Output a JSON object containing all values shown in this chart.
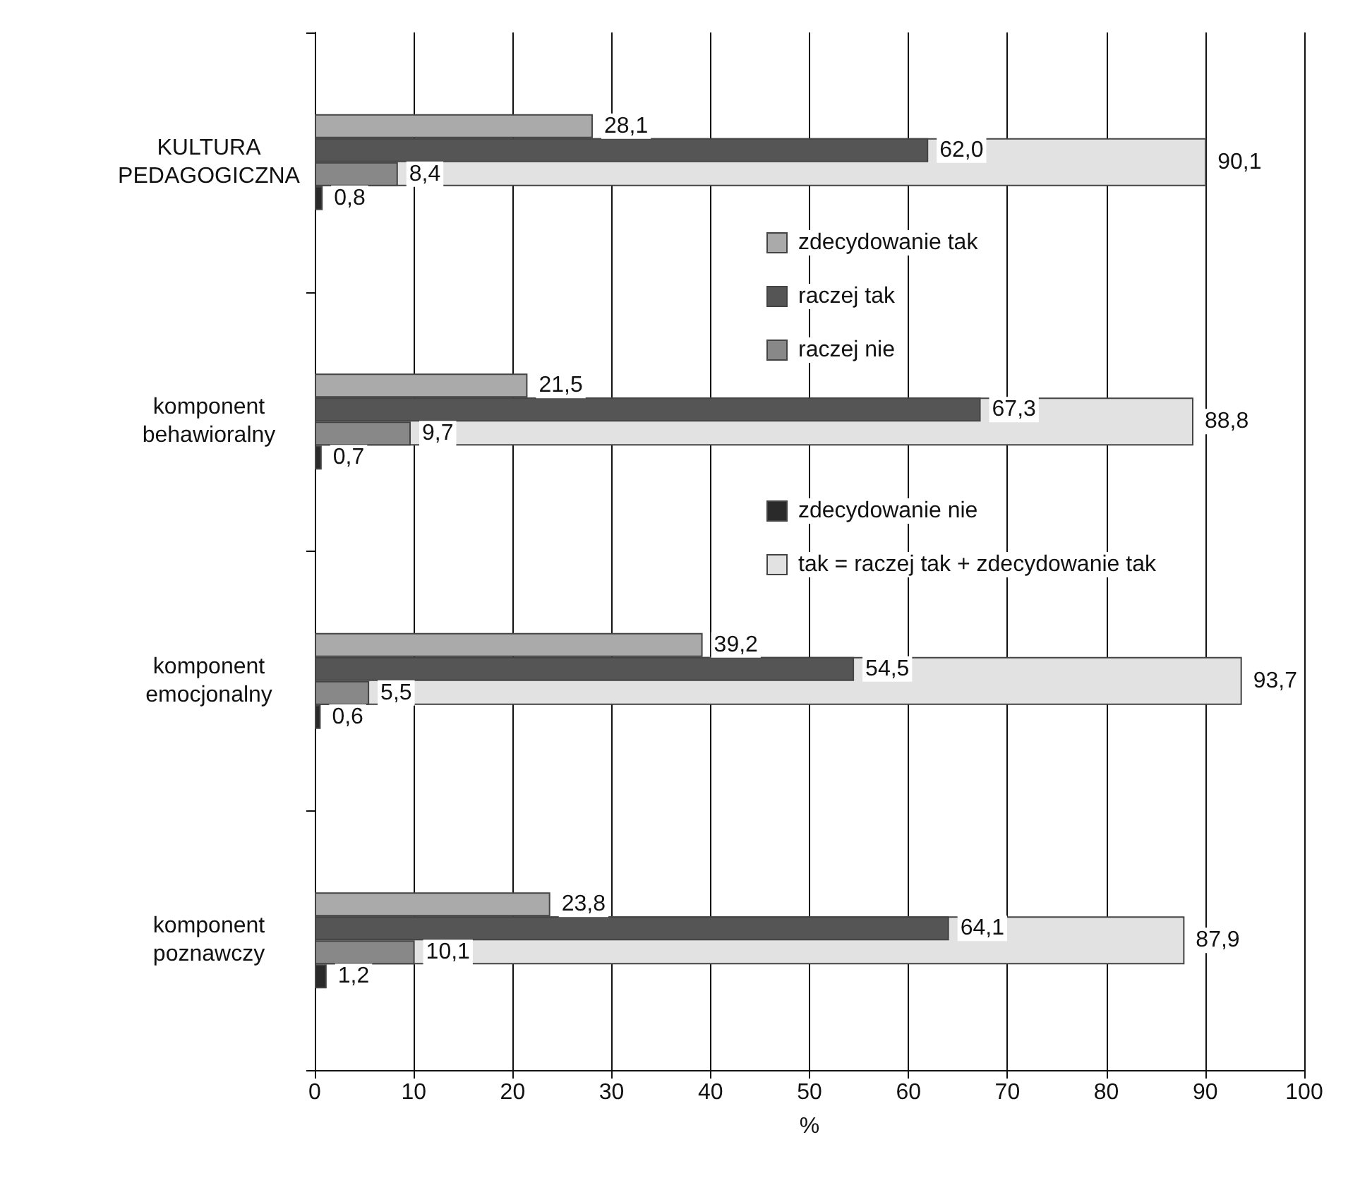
{
  "chart_data": {
    "type": "bar",
    "orientation": "horizontal",
    "xlabel": "%",
    "categories": [
      "KULTURA\nPEDAGOGICZNA",
      "komponent\nbehawioralny",
      "komponent\nemocjonalny",
      "komponent\npoznawczy"
    ],
    "series": [
      {
        "name": "zdecydowanie tak",
        "color": "#aaaaaa",
        "values": [
          28.1,
          21.5,
          39.2,
          23.8
        ],
        "value_labels": [
          "28,1",
          "21,5",
          "39,2",
          "23,8"
        ]
      },
      {
        "name": "raczej tak",
        "color": "#555555",
        "values": [
          62.0,
          67.3,
          54.5,
          64.1
        ],
        "value_labels": [
          "62,0",
          "67,3",
          "54,5",
          "64,1"
        ]
      },
      {
        "name": "raczej nie",
        "color": "#888888",
        "values": [
          8.4,
          9.7,
          5.5,
          10.1
        ],
        "value_labels": [
          "8,4",
          "9,7",
          "5,5",
          "10,1"
        ]
      },
      {
        "name": "zdecydowanie nie",
        "color": "#2a2a2a",
        "values": [
          0.8,
          0.7,
          0.6,
          1.2
        ],
        "value_labels": [
          "0,8",
          "0,7",
          "0,6",
          "1,2"
        ]
      },
      {
        "name": "tak = raczej tak + zdecydowanie tak",
        "color": "#e2e2e2",
        "type": "bar",
        "values": [
          90.1,
          88.8,
          93.7,
          87.9
        ],
        "value_labels": [
          "90,1",
          "88,8",
          "93,7",
          "87,9"
        ]
      }
    ],
    "xlim": [
      0,
      100
    ],
    "xticks": [
      0,
      10,
      20,
      30,
      40,
      50,
      60,
      70,
      80,
      90,
      100
    ],
    "grid": "x",
    "legend": "right"
  }
}
